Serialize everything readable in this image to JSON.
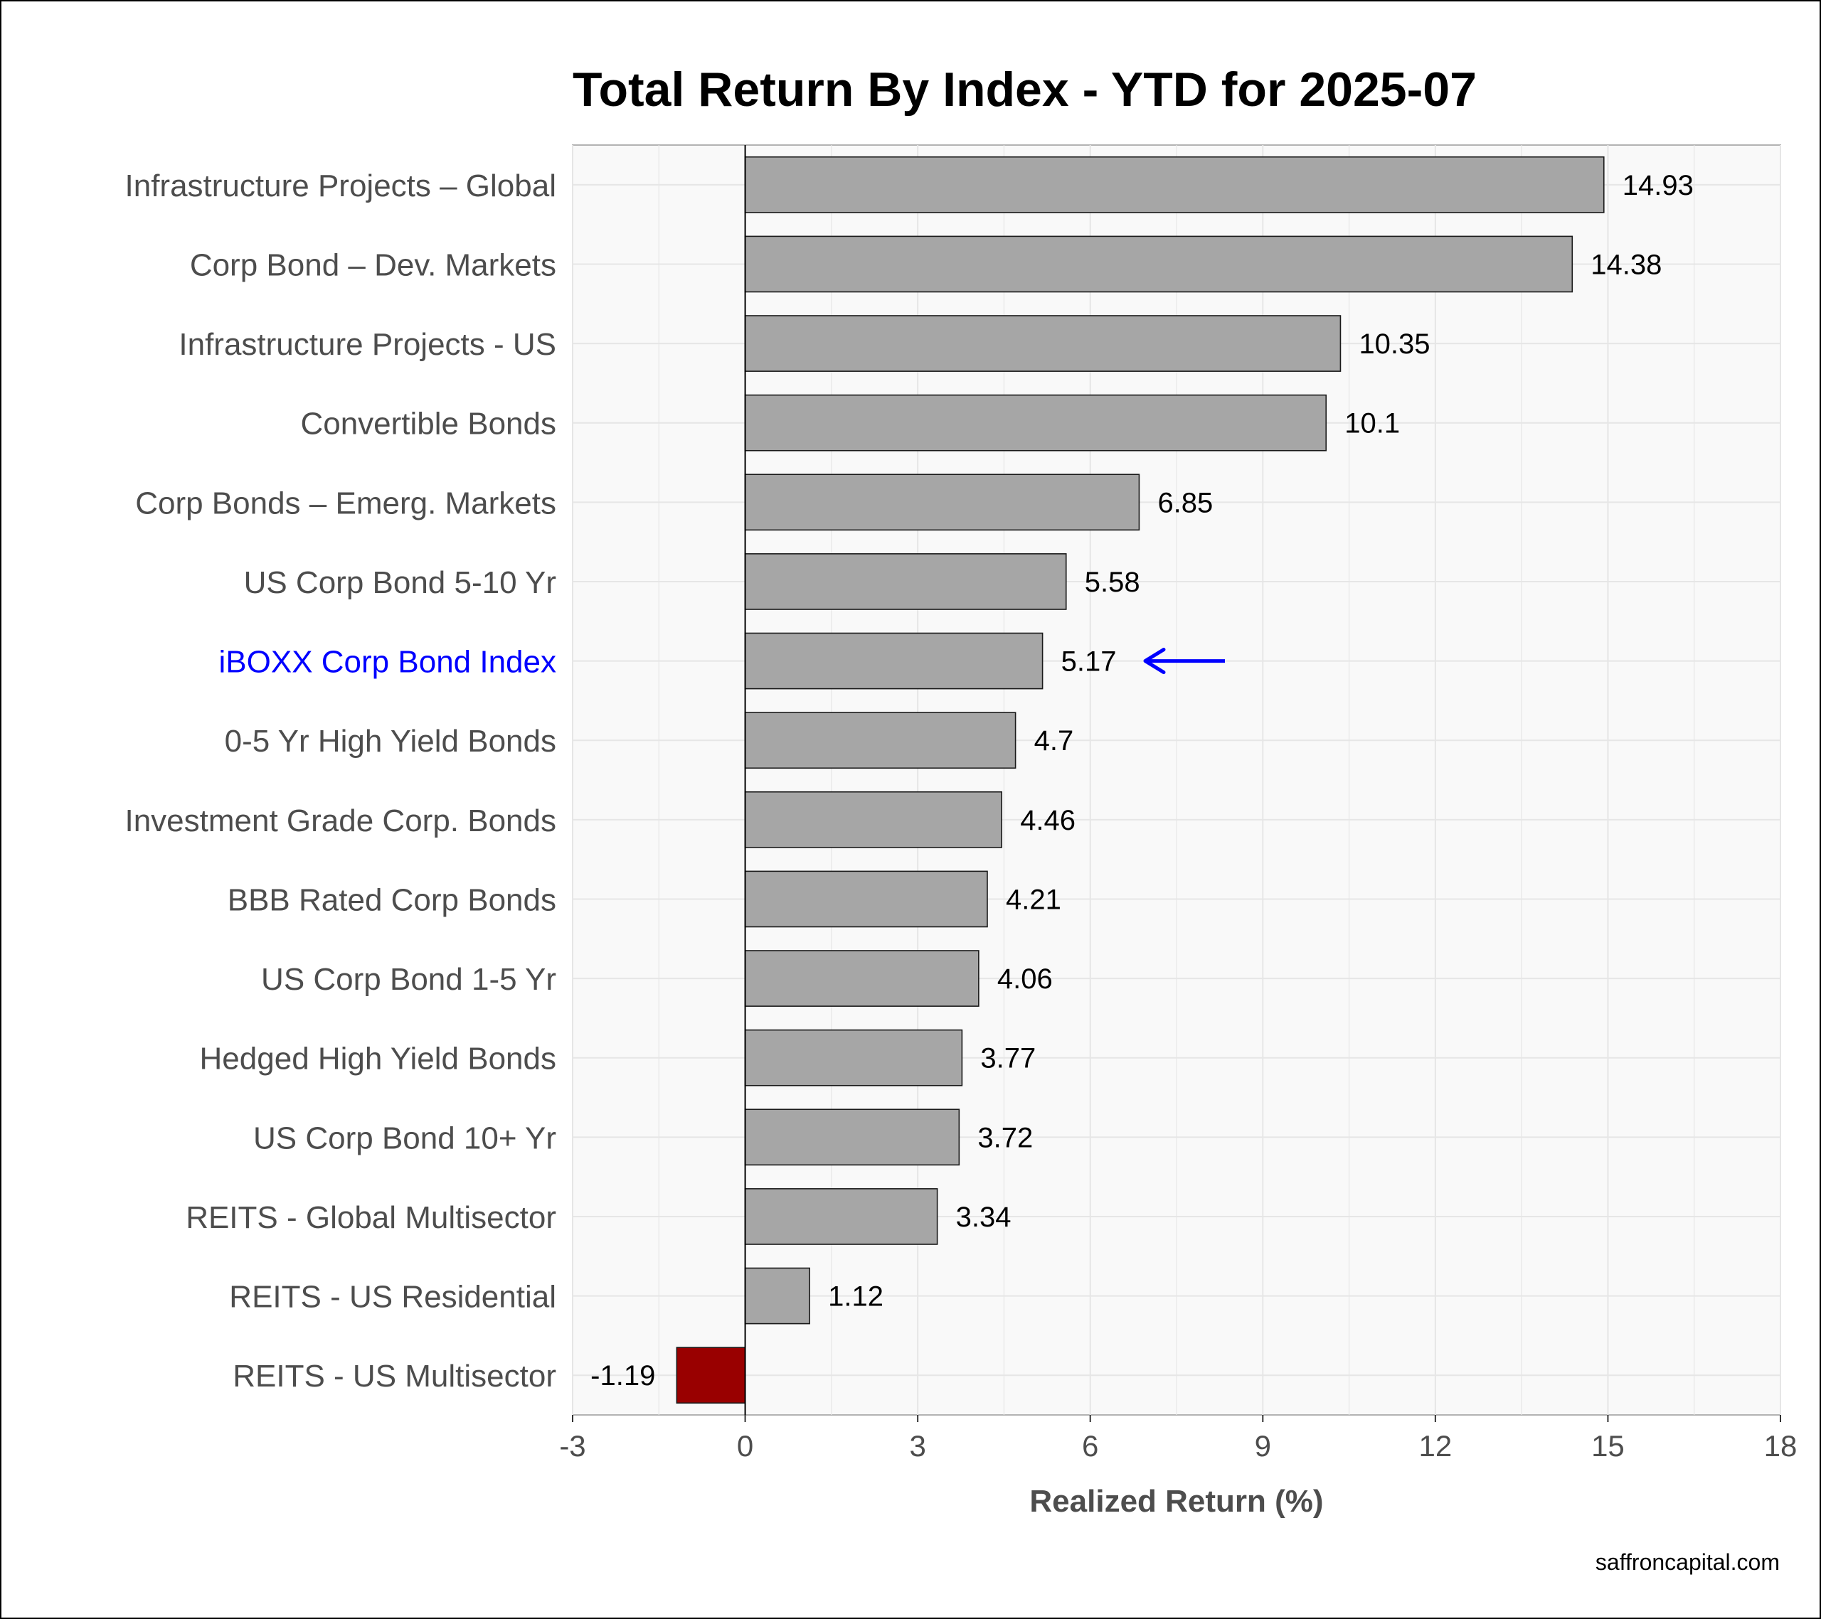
{
  "chart_data": {
    "type": "bar",
    "orientation": "horizontal",
    "title": "Total Return By Index - YTD for 2025-07",
    "xlabel": "Realized Return (%)",
    "ylabel": "",
    "xlim": [
      -3,
      18
    ],
    "x_ticks": [
      "-3",
      "0",
      "3",
      "6",
      "9",
      "12",
      "15",
      "18"
    ],
    "grid": true,
    "categories": [
      "Infrastructure Projects – Global",
      "Corp Bond – Dev. Markets",
      "Infrastructure Projects - US",
      "Convertible Bonds",
      "Corp Bonds – Emerg. Markets",
      "US Corp Bond 5-10 Yr",
      "iBOXX Corp Bond Index",
      "0-5 Yr High Yield Bonds",
      "Investment Grade Corp. Bonds",
      "BBB Rated Corp Bonds",
      "US Corp Bond 1-5 Yr",
      "Hedged High Yield Bonds",
      "US Corp Bond 10+ Yr",
      "REITS - Global Multisector",
      "REITS - US Residential",
      "REITS - US Multisector"
    ],
    "values": [
      14.93,
      14.38,
      10.35,
      10.1,
      6.85,
      5.58,
      5.17,
      4.7,
      4.46,
      4.21,
      4.06,
      3.77,
      3.72,
      3.34,
      1.12,
      -1.19
    ],
    "value_labels": [
      "14.93",
      "14.38",
      "10.35",
      "10.1",
      "6.85",
      "5.58",
      "5.17",
      "4.7",
      "4.46",
      "4.21",
      "4.06",
      "3.77",
      "3.72",
      "3.34",
      "1.12",
      "-1.19"
    ],
    "highlight_category": "iBOXX Corp Bond Index",
    "highlight_marker": "left-arrow",
    "colors": {
      "positive_bar": "#a6a6a6",
      "negative_bar": "#990000",
      "highlight_label": "#0000ff",
      "arrow": "#0000ff",
      "panel_background": "#f9f9f9",
      "grid": "#e6e6e6"
    }
  },
  "caption": "saffroncapital.com"
}
